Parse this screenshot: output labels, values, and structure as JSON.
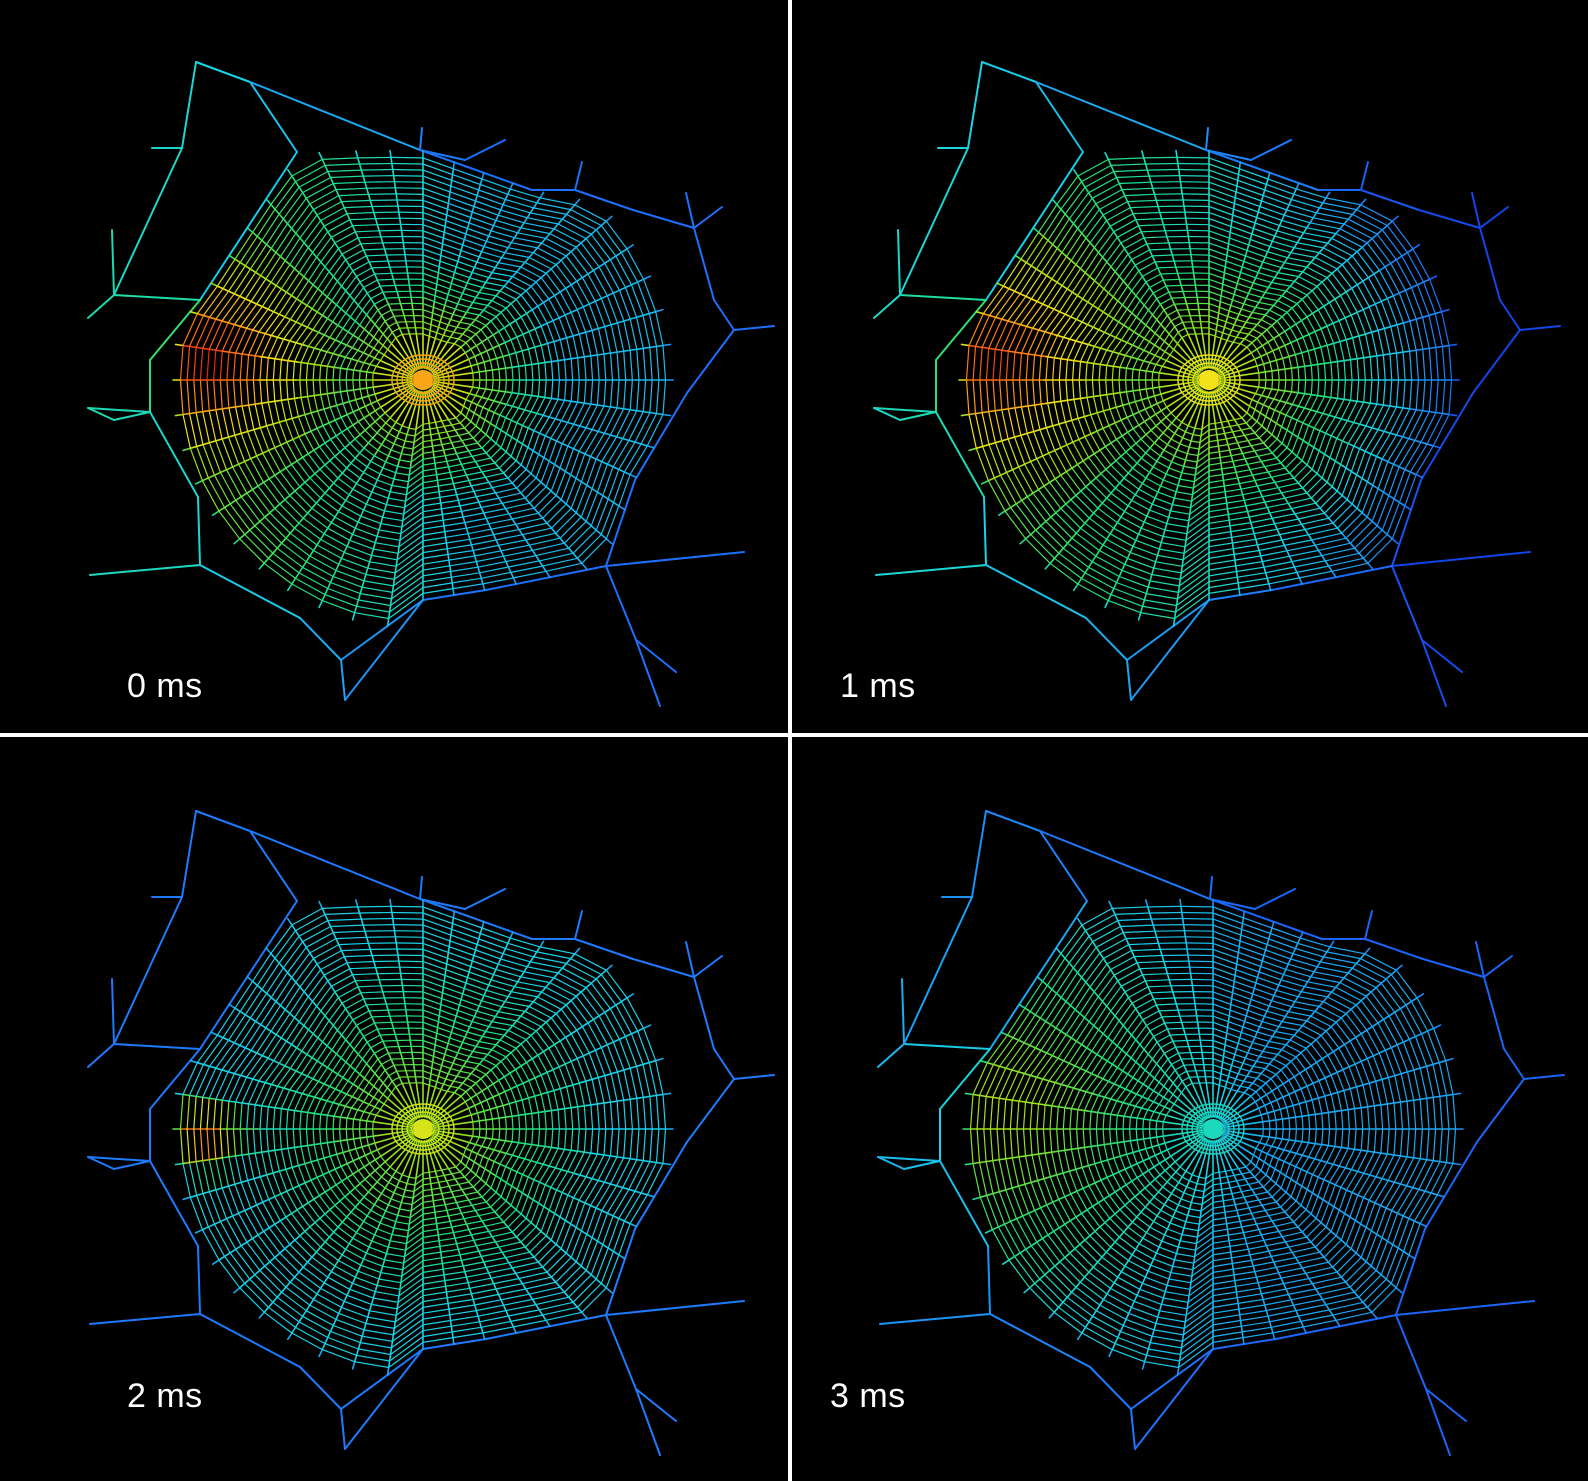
{
  "panels": [
    {
      "label": "0 ms",
      "state": 0
    },
    {
      "label": "1 ms",
      "state": 1
    },
    {
      "label": "2 ms",
      "state": 2
    },
    {
      "label": "3 ms",
      "state": 3
    }
  ],
  "colors": {
    "background": "#000000",
    "divider": "#ffffff",
    "label": "#ffffff",
    "colormap": [
      "#0a1fd6",
      "#1e73ff",
      "#19d4e6",
      "#22e07a",
      "#9be01a",
      "#f2e61a",
      "#ff7a12",
      "#e81414"
    ]
  }
}
